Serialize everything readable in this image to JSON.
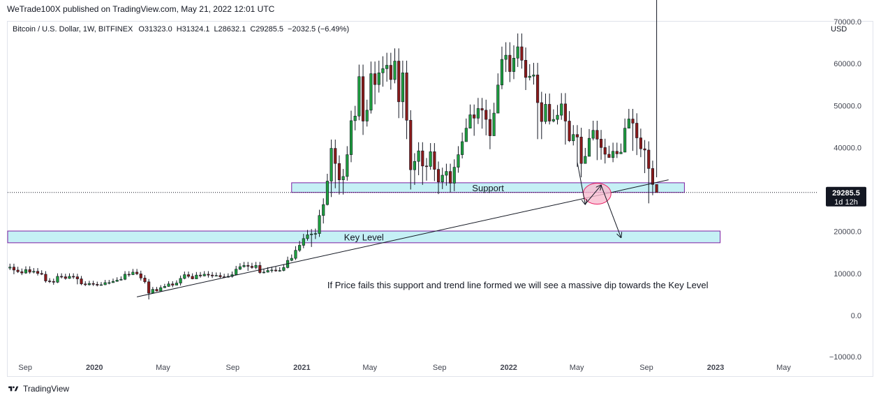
{
  "header": {
    "publish_line": "WeTrade100X published on TradingView.com, May 21, 2022 12:01 UTC"
  },
  "footer": {
    "brand": "TradingView",
    "logo_icon": "tradingview-logo-icon"
  },
  "colors": {
    "up": "#26a69a",
    "down": "#ef5350",
    "candle_up_body": "#1e9f3f",
    "candle_down_body": "#8b1a1a",
    "zone_fill": "#b2ebf2",
    "zone_border": "#7b1fa2",
    "ellipse_fill": "#f8bbd0",
    "ellipse_border": "#e91e63",
    "price_label_bg": "#131722"
  },
  "chart_data": {
    "type": "candlestick",
    "title": "Bitcoin / U.S. Dollar, 1W, BITFINEX",
    "ohlc_readout": {
      "open": "O31323.0",
      "high": "H31324.1",
      "low": "L28632.1",
      "close": "C29285.5",
      "change": "−2032.5 (−6.49%)"
    },
    "currency_label": "USD",
    "y_ticks": [
      "70000.0",
      "60000.0",
      "50000.0",
      "40000.0",
      "30000.0",
      "20000.0",
      "10000.0",
      "0.0",
      "−10000.0"
    ],
    "y_tick_values": [
      70000,
      60000,
      50000,
      40000,
      30000,
      20000,
      10000,
      0,
      -10000
    ],
    "ylim": [
      -10000,
      70000
    ],
    "x_ticks": [
      {
        "label": "Sep",
        "date": "2019-09-01",
        "bold": false
      },
      {
        "label": "2020",
        "date": "2020-01-01",
        "bold": true
      },
      {
        "label": "May",
        "date": "2020-05-01",
        "bold": false
      },
      {
        "label": "Sep",
        "date": "2020-09-01",
        "bold": false
      },
      {
        "label": "2021",
        "date": "2021-01-01",
        "bold": true
      },
      {
        "label": "May",
        "date": "2021-05-01",
        "bold": false
      },
      {
        "label": "Sep",
        "date": "2021-09-01",
        "bold": false
      },
      {
        "label": "2022",
        "date": "2022-01-01",
        "bold": true
      },
      {
        "label": "May",
        "date": "2022-05-01",
        "bold": false
      },
      {
        "label": "Sep",
        "date": "2022-09-01",
        "bold": false
      },
      {
        "label": "2023",
        "date": "2023-01-01",
        "bold": true
      },
      {
        "label": "May",
        "date": "2023-05-01",
        "bold": false
      }
    ],
    "xlim": [
      "2019-08-01",
      "2023-07-01"
    ],
    "current_price": {
      "value": 29285.5,
      "label": "29285.5",
      "countdown": "1d 12h"
    },
    "zones": [
      {
        "name": "Support",
        "y_low": 29300,
        "y_high": 31600,
        "x_start": "2020-12-14",
        "x_end": "2022-11-07"
      },
      {
        "name": "Key Level",
        "y_low": 17300,
        "y_high": 20100,
        "x_start": "2019-08-01",
        "x_end": "2023-01-09"
      }
    ],
    "trend_line": {
      "x1": "2020-03-16",
      "y1": 4400,
      "x2": "2022-10-10",
      "y2": 32300
    },
    "ellipse": {
      "center_x": "2022-06-06",
      "center_y": 29000,
      "rx_weeks": 3.5,
      "ry_value": 2500
    },
    "arrows": [
      {
        "x1": "2022-05-02",
        "y1": 36500,
        "x2": "2022-05-16",
        "y2": 26500
      },
      {
        "x1": "2022-05-16",
        "y1": 26500,
        "x2": "2022-06-13",
        "y2": 31000
      },
      {
        "x1": "2022-06-13",
        "y1": 31000,
        "x2": "2022-07-18",
        "y2": 18600
      }
    ],
    "annotation": "If Price fails this support and trend line formed we will see a massive dip towards the Key Level",
    "annotation_pos": {
      "x": "2022-01-17",
      "y": 7100
    },
    "start_date": "2019-08-05",
    "closes": [
      11500,
      10800,
      10400,
      10100,
      10900,
      10300,
      10500,
      10000,
      9800,
      8200,
      8100,
      7900,
      9300,
      9200,
      8800,
      9300,
      9200,
      8700,
      7500,
      7300,
      7600,
      7400,
      7200,
      7300,
      7800,
      7800,
      8100,
      8400,
      8600,
      9800,
      9700,
      10300,
      9900,
      8900,
      8000,
      5300,
      6200,
      5800,
      6600,
      6900,
      7500,
      7200,
      7700,
      8800,
      9700,
      9300,
      8700,
      9600,
      9400,
      9800,
      9600,
      9400,
      9500,
      9200,
      9100,
      9300,
      9700,
      11000,
      11600,
      11900,
      11700,
      11400,
      11900,
      10200,
      10300,
      10700,
      10800,
      10600,
      10700,
      11400,
      13100,
      13600,
      15500,
      16700,
      18300,
      19200,
      19400,
      19500,
      23800,
      26400,
      32000,
      39800,
      36200,
      32300,
      33100,
      38300,
      46400,
      47500,
      56900,
      46300,
      48900,
      57600,
      55000,
      57800,
      58800,
      59600,
      56200,
      60600,
      50900,
      57800,
      46500,
      34700,
      36700,
      39200,
      35600,
      35500,
      39000,
      34800,
      31800,
      33400,
      34300,
      31500,
      35300,
      38300,
      41400,
      44600,
      47800,
      47000,
      49300,
      48900,
      46700,
      42800,
      48200,
      54900,
      61000,
      62000,
      58100,
      61300,
      64000,
      60800,
      56700,
      57000,
      57300,
      50700,
      46200,
      50300,
      46300,
      46700,
      47700,
      50400,
      46300,
      41600,
      43100,
      42500,
      36200,
      37900,
      42200,
      44100,
      42000,
      40000,
      38400,
      37600,
      39100,
      38500,
      38900,
      44600,
      46800,
      45800,
      42300,
      39700,
      39400,
      35000,
      31200,
      29285.5
    ],
    "lows": [
      10800,
      9800,
      10100,
      9600,
      9900,
      9900,
      10000,
      9500,
      9600,
      7800,
      7700,
      7300,
      7700,
      8800,
      8500,
      8700,
      8700,
      7400,
      7200,
      7000,
      7100,
      7000,
      6900,
      7100,
      7200,
      7400,
      7800,
      8000,
      8300,
      8400,
      9200,
      9600,
      9600,
      8300,
      7600,
      3800,
      5200,
      5700,
      5900,
      6500,
      6800,
      6700,
      7200,
      7100,
      8600,
      8900,
      8600,
      9200,
      9000,
      9300,
      9000,
      8900,
      9300,
      8900,
      8900,
      9000,
      9000,
      9600,
      10800,
      11400,
      10600,
      11100,
      11000,
      9900,
      10000,
      10200,
      10200,
      10400,
      10400,
      10500,
      11200,
      12900,
      13200,
      15100,
      16000,
      17800,
      16300,
      18200,
      18700,
      21900,
      26200,
      28200,
      30300,
      28800,
      28800,
      32100,
      36500,
      44100,
      46500,
      43000,
      45000,
      48100,
      50300,
      53100,
      54500,
      55700,
      53800,
      55300,
      47000,
      47000,
      42000,
      30000,
      31100,
      33400,
      31100,
      32100,
      34700,
      32000,
      28900,
      30100,
      30900,
      29300,
      29600,
      34000,
      37400,
      43700,
      44700,
      42800,
      45600,
      44500,
      42900,
      39600,
      43000,
      48300,
      53900,
      58000,
      55600,
      56300,
      59200,
      58800,
      53700,
      56000,
      55000,
      42000,
      42000,
      45600,
      45500,
      46000,
      45500,
      46600,
      40700,
      41300,
      40500,
      35400,
      32900,
      36300,
      40900,
      41700,
      37000,
      37100,
      36200,
      37700,
      36500,
      37500,
      40000,
      43400,
      45500,
      39200,
      38200,
      37700,
      33900,
      26700,
      28632.1
    ]
  }
}
